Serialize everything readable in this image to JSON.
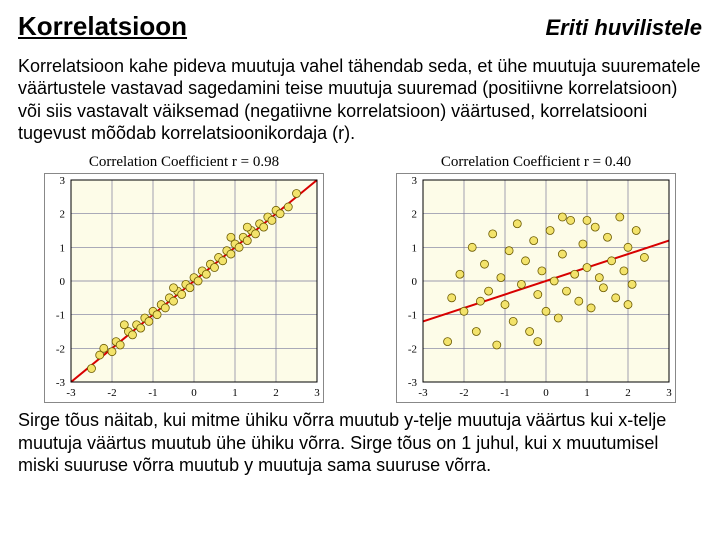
{
  "header": {
    "title": "Korrelatsioon",
    "subtitle": "Eriti huvilistele"
  },
  "paragraph_top": "Korrelatsioon kahe pideva muutuja vahel tähendab seda, et ühe muutuja suurematele väärtustele vastavad sagedamini teise muutuja suuremad (positiivne korrelatsioon) või siis vastavalt väiksemad (negatiivne korrelatsioon) väärtused, korrelatsiooni tugevust mõõdab korrelatsioonikordaja (r).",
  "paragraph_bottom": "Sirge tõus näitab, kui mitme ühiku võrra muutub y-telje muutuja väärtus kui x-telje muutuja väärtus muutub ühe ühiku võrra. Sirge tõus on 1 juhul, kui x muutumisel miski suuruse võrra muutub y muutuja sama suuruse võrra.",
  "chart_left": {
    "type": "scatter",
    "title_prefix": "Correlation Coefficient  r = ",
    "r_value": "0.98",
    "xlim": [
      -3,
      3
    ],
    "ylim": [
      -3,
      3
    ],
    "ticks": [
      -3,
      -2,
      -1,
      0,
      1,
      2,
      3
    ],
    "background_color": "#fdfce8",
    "grid_color": "#7a7a9a",
    "axis_color": "#000000",
    "line_color": "#d80000",
    "line_width": 2,
    "marker_fill": "#f3e36b",
    "marker_stroke": "#6b5a00",
    "marker_radius": 4,
    "line": {
      "x1": -3,
      "y1": -3,
      "x2": 3,
      "y2": 3
    },
    "points": [
      [
        -2.5,
        -2.6
      ],
      [
        -2.3,
        -2.2
      ],
      [
        -2.2,
        -2.0
      ],
      [
        -2.0,
        -2.1
      ],
      [
        -1.9,
        -1.8
      ],
      [
        -1.8,
        -1.9
      ],
      [
        -1.6,
        -1.5
      ],
      [
        -1.5,
        -1.6
      ],
      [
        -1.4,
        -1.3
      ],
      [
        -1.3,
        -1.4
      ],
      [
        -1.2,
        -1.1
      ],
      [
        -1.1,
        -1.2
      ],
      [
        -1.0,
        -0.9
      ],
      [
        -0.9,
        -1.0
      ],
      [
        -0.8,
        -0.7
      ],
      [
        -0.7,
        -0.8
      ],
      [
        -0.6,
        -0.5
      ],
      [
        -0.5,
        -0.6
      ],
      [
        -0.4,
        -0.3
      ],
      [
        -0.3,
        -0.4
      ],
      [
        -0.2,
        -0.1
      ],
      [
        -0.1,
        -0.2
      ],
      [
        0.0,
        0.1
      ],
      [
        0.1,
        0.0
      ],
      [
        0.2,
        0.3
      ],
      [
        0.3,
        0.2
      ],
      [
        0.4,
        0.5
      ],
      [
        0.5,
        0.4
      ],
      [
        0.6,
        0.7
      ],
      [
        0.7,
        0.6
      ],
      [
        0.8,
        0.9
      ],
      [
        0.9,
        0.8
      ],
      [
        1.0,
        1.1
      ],
      [
        1.1,
        1.0
      ],
      [
        1.2,
        1.3
      ],
      [
        1.3,
        1.2
      ],
      [
        1.4,
        1.5
      ],
      [
        1.5,
        1.4
      ],
      [
        1.6,
        1.7
      ],
      [
        1.7,
        1.6
      ],
      [
        1.8,
        1.9
      ],
      [
        1.9,
        1.8
      ],
      [
        2.0,
        2.1
      ],
      [
        2.1,
        2.0
      ],
      [
        2.3,
        2.2
      ],
      [
        2.5,
        2.6
      ],
      [
        -0.5,
        -0.2
      ],
      [
        0.9,
        1.3
      ],
      [
        -1.7,
        -1.3
      ],
      [
        1.3,
        1.6
      ]
    ]
  },
  "chart_right": {
    "type": "scatter",
    "title_prefix": "Correlation Coefficient  r = ",
    "r_value": "0.40",
    "xlim": [
      -3,
      3
    ],
    "ylim": [
      -3,
      3
    ],
    "ticks": [
      -3,
      -2,
      -1,
      0,
      1,
      2,
      3
    ],
    "background_color": "#fdfce8",
    "grid_color": "#7a7a9a",
    "axis_color": "#000000",
    "line_color": "#d80000",
    "line_width": 2,
    "marker_fill": "#f3e36b",
    "marker_stroke": "#6b5a00",
    "marker_radius": 4,
    "line": {
      "x1": -3,
      "y1": -1.2,
      "x2": 3,
      "y2": 1.2
    },
    "points": [
      [
        -2.4,
        -1.8
      ],
      [
        -2.1,
        0.2
      ],
      [
        -2.0,
        -0.9
      ],
      [
        -1.8,
        1.0
      ],
      [
        -1.7,
        -1.5
      ],
      [
        -1.5,
        0.5
      ],
      [
        -1.4,
        -0.3
      ],
      [
        -1.3,
        1.4
      ],
      [
        -1.2,
        -1.9
      ],
      [
        -1.1,
        0.1
      ],
      [
        -1.0,
        -0.7
      ],
      [
        -0.9,
        0.9
      ],
      [
        -0.8,
        -1.2
      ],
      [
        -0.7,
        1.7
      ],
      [
        -0.6,
        -0.1
      ],
      [
        -0.5,
        0.6
      ],
      [
        -0.4,
        -1.5
      ],
      [
        -0.3,
        1.2
      ],
      [
        -0.2,
        -0.4
      ],
      [
        -0.1,
        0.3
      ],
      [
        0.0,
        -0.9
      ],
      [
        0.1,
        1.5
      ],
      [
        0.2,
        0.0
      ],
      [
        0.3,
        -1.1
      ],
      [
        0.4,
        0.8
      ],
      [
        0.5,
        -0.3
      ],
      [
        0.6,
        1.8
      ],
      [
        0.7,
        0.2
      ],
      [
        0.8,
        -0.6
      ],
      [
        0.9,
        1.1
      ],
      [
        1.0,
        0.4
      ],
      [
        1.1,
        -0.8
      ],
      [
        1.2,
        1.6
      ],
      [
        1.3,
        0.1
      ],
      [
        1.4,
        -0.2
      ],
      [
        1.5,
        1.3
      ],
      [
        1.6,
        0.6
      ],
      [
        1.7,
        -0.5
      ],
      [
        1.8,
        1.9
      ],
      [
        1.9,
        0.3
      ],
      [
        2.0,
        1.0
      ],
      [
        2.1,
        -0.1
      ],
      [
        2.2,
        1.5
      ],
      [
        2.4,
        0.7
      ],
      [
        -1.6,
        -0.6
      ],
      [
        0.4,
        1.9
      ],
      [
        -0.2,
        -1.8
      ],
      [
        1.0,
        1.8
      ],
      [
        -2.3,
        -0.5
      ],
      [
        2.0,
        -0.7
      ]
    ]
  }
}
